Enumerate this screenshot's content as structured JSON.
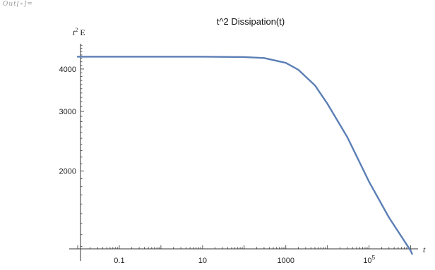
{
  "cell_label": "Out[∘]=",
  "chart_data": {
    "type": "line",
    "title": "t^2 Dissipation(t)",
    "xlabel": "t",
    "ylabel_base": "t",
    "ylabel_sup": "2",
    "ylabel_rest": " E",
    "x_scale": "log",
    "y_scale": "log",
    "xlim": [
      0.01,
      1500000
    ],
    "ylim": [
      1180,
      4750
    ],
    "x_ticks": [
      {
        "value": 0.1,
        "base": "0.1",
        "sup": ""
      },
      {
        "value": 10,
        "base": "10",
        "sup": ""
      },
      {
        "value": 1000,
        "base": "1000",
        "sup": ""
      },
      {
        "value": 100000,
        "base": "10",
        "sup": "5"
      }
    ],
    "y_ticks": [
      {
        "value": 2000,
        "label": "2000"
      },
      {
        "value": 3000,
        "label": "3000"
      },
      {
        "value": 4000,
        "label": "4000"
      }
    ],
    "grid": false,
    "line_color": "#5b7fb5",
    "series": [
      {
        "x": [
          0.01,
          0.1,
          1,
          10,
          100,
          300,
          1000,
          2000,
          5000,
          10000,
          30000,
          100000,
          300000,
          1000000,
          1080000
        ],
        "y": [
          4350,
          4350,
          4350,
          4350,
          4340,
          4310,
          4170,
          3980,
          3580,
          3160,
          2520,
          1860,
          1460,
          1165,
          1140
        ]
      }
    ]
  }
}
